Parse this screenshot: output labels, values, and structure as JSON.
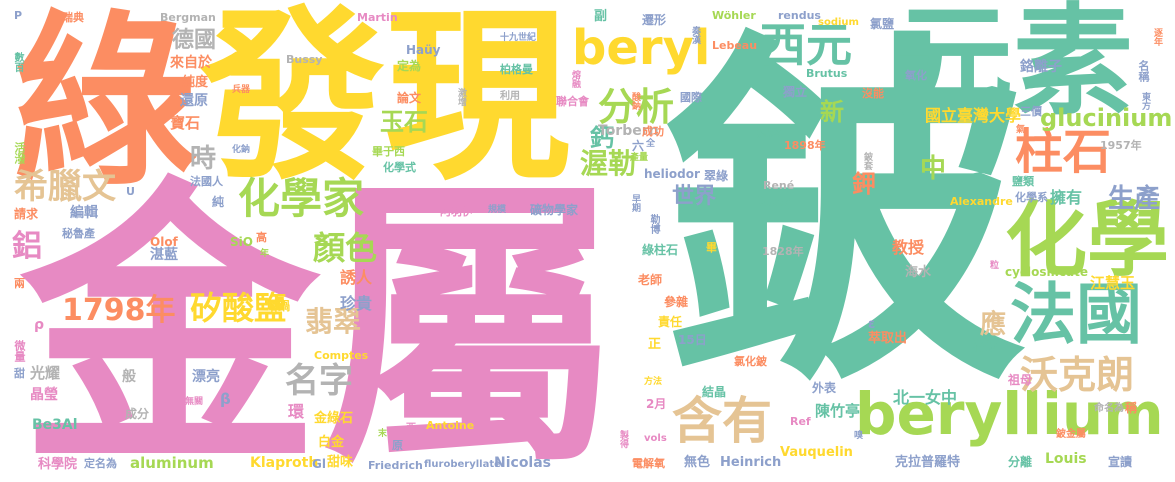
{
  "palette": {
    "green": "#66C2A5",
    "orange": "#FC8D62",
    "blue": "#8DA0CB",
    "pink": "#E78AC3",
    "lime": "#A6D854",
    "yellow": "#FFD92F",
    "tan": "#E5C494",
    "gray": "#B3B3B3"
  },
  "words": [
    {
      "text": "鈹",
      "color": "#66C2A5"
    },
    {
      "text": "金屬",
      "color": "#E78AC3"
    },
    {
      "text": "綠",
      "color": "#FC8D62"
    },
    {
      "text": "發現",
      "color": "#FFD92F"
    },
    {
      "text": "元素",
      "color": "#66C2A5"
    },
    {
      "text": "beryllium",
      "color": "#A6D854"
    },
    {
      "text": "化學",
      "color": "#A6D854"
    },
    {
      "text": "法國",
      "color": "#66C2A5"
    },
    {
      "text": "beryl",
      "color": "#FFD92F"
    },
    {
      "text": "西元",
      "color": "#66C2A5"
    },
    {
      "text": "柱石",
      "color": "#FC8D62"
    },
    {
      "text": "化學家",
      "color": "#A6D854"
    },
    {
      "text": "含有",
      "color": "#E5C494"
    },
    {
      "text": "沃克朗",
      "color": "#E5C494"
    },
    {
      "text": "分析",
      "color": "#A6D854"
    },
    {
      "text": "希臘文",
      "color": "#E5C494"
    },
    {
      "text": "1798年",
      "color": "#FC8D62"
    },
    {
      "text": "矽酸鹽",
      "color": "#FFD92F"
    },
    {
      "text": "名字",
      "color": "#B3B3B3"
    },
    {
      "text": "翡翠",
      "color": "#E5C494"
    },
    {
      "text": "顏色",
      "color": "#A6D854"
    },
    {
      "text": "glucinium",
      "color": "#A6D854"
    },
    {
      "text": "鋁",
      "color": "#E78AC3"
    },
    {
      "text": "生產",
      "color": "#8DA0CB"
    },
    {
      "text": "渥勒",
      "color": "#A6D854"
    },
    {
      "text": "玉石",
      "color": "#A6D854"
    },
    {
      "text": "世界",
      "color": "#8DA0CB"
    },
    {
      "text": "中",
      "color": "#A6D854"
    },
    {
      "text": "鉀",
      "color": "#FC8D62"
    },
    {
      "text": "時",
      "color": "#B3B3B3"
    },
    {
      "text": "德國",
      "color": "#B3B3B3"
    },
    {
      "text": "應",
      "color": "#E5C494"
    },
    {
      "text": "新",
      "color": "#A6D854"
    },
    {
      "text": "鈣",
      "color": "#66C2A5"
    },
    {
      "text": "Torbern",
      "color": "#B3B3B3"
    },
    {
      "text": "國立臺灣大學",
      "color": "#FFD92F"
    },
    {
      "text": "鉻離子",
      "color": "#8DA0CB"
    },
    {
      "text": "教授",
      "color": "#FC8D62"
    },
    {
      "text": "擁有",
      "color": "#66C2A5"
    },
    {
      "text": "珍貴",
      "color": "#8DA0CB"
    },
    {
      "text": "誘人",
      "color": "#FC8D62"
    },
    {
      "text": "北一女中",
      "color": "#66C2A5"
    },
    {
      "text": "江慧玉",
      "color": "#FFD92F"
    },
    {
      "text": "陳竹亭",
      "color": "#66C2A5"
    },
    {
      "text": "寶石",
      "color": "#FC8D62"
    },
    {
      "text": "光耀",
      "color": "#B3B3B3"
    },
    {
      "text": "晶瑩",
      "color": "#E78AC3"
    },
    {
      "text": "還原",
      "color": "#8DA0CB"
    },
    {
      "text": "純度",
      "color": "#FC8D62"
    },
    {
      "text": "來自於",
      "color": "#FC8D62"
    },
    {
      "text": "編輯",
      "color": "#8DA0CB"
    },
    {
      "text": "請求",
      "color": "#FC8D62"
    },
    {
      "text": "湛藍",
      "color": "#8DA0CB"
    },
    {
      "text": "秘魯產",
      "color": "#8DA0CB"
    },
    {
      "text": "Be3Al",
      "color": "#66C2A5"
    },
    {
      "text": "科學院",
      "color": "#E78AC3"
    },
    {
      "text": "定名為",
      "color": "#8DA0CB"
    },
    {
      "text": "aluminum",
      "color": "#A6D854"
    },
    {
      "text": "Klaproth",
      "color": "#FFD92F"
    },
    {
      "text": "Gl",
      "color": "#8DA0CB"
    },
    {
      "text": "甜味",
      "color": "#FFD92F"
    },
    {
      "text": "Friedrich",
      "color": "#8DA0CB"
    },
    {
      "text": "fluroberyllate",
      "color": "#8DA0CB"
    },
    {
      "text": "Nicolas",
      "color": "#8DA0CB"
    },
    {
      "text": "電解氧",
      "color": "#FC8D62"
    },
    {
      "text": "無色",
      "color": "#8DA0CB"
    },
    {
      "text": "Heinrich",
      "color": "#8DA0CB"
    },
    {
      "text": "Vauquelin",
      "color": "#FFD92F"
    },
    {
      "text": "克拉普羅特",
      "color": "#8DA0CB"
    },
    {
      "text": "分離",
      "color": "#66C2A5"
    },
    {
      "text": "Louis",
      "color": "#A6D854"
    },
    {
      "text": "宣讀",
      "color": "#8DA0CB"
    },
    {
      "text": "白金",
      "color": "#FFD92F"
    },
    {
      "text": "金綠石",
      "color": "#FFD92F"
    },
    {
      "text": "環",
      "color": "#E78AC3"
    },
    {
      "text": "漂亮",
      "color": "#8DA0CB"
    },
    {
      "text": "般",
      "color": "#B3B3B3"
    },
    {
      "text": "成分",
      "color": "#B3B3B3"
    },
    {
      "text": "坩鍋",
      "color": "#FFD92F"
    },
    {
      "text": "SiO",
      "color": "#A6D854"
    },
    {
      "text": "高",
      "color": "#FC8D62"
    },
    {
      "text": "Olof",
      "color": "#FC8D62"
    },
    {
      "text": "純",
      "color": "#8DA0CB"
    },
    {
      "text": "法國人",
      "color": "#8DA0CB"
    },
    {
      "text": "化學式",
      "color": "#66C2A5"
    },
    {
      "text": "畢于西",
      "color": "#A6D854"
    },
    {
      "text": "論文",
      "color": "#FC8D62"
    },
    {
      "text": "定為",
      "color": "#A6D854"
    },
    {
      "text": "Haüy",
      "color": "#8DA0CB"
    },
    {
      "text": "Bussy",
      "color": "#B3B3B3"
    },
    {
      "text": "Martin",
      "color": "#E78AC3"
    },
    {
      "text": "Bergman",
      "color": "#B3B3B3"
    },
    {
      "text": "瑞典",
      "color": "#FC8D62"
    },
    {
      "text": "十九世紀",
      "color": "#8DA0CB"
    },
    {
      "text": "柏格曼",
      "color": "#66C2A5"
    },
    {
      "text": "利用",
      "color": "#B3B3B3"
    },
    {
      "text": "阿羽伊",
      "color": "#E78AC3"
    },
    {
      "text": "礦物學家",
      "color": "#8DA0CB"
    },
    {
      "text": "規模",
      "color": "#8DA0CB"
    },
    {
      "text": "heliodor",
      "color": "#8DA0CB"
    },
    {
      "text": "René",
      "color": "#B3B3B3"
    },
    {
      "text": "λλος",
      "color": "#66C2A5"
    },
    {
      "text": "Alexandre",
      "color": "#FFD92F"
    },
    {
      "text": "化學系",
      "color": "#8DA0CB"
    },
    {
      "text": "鹽類",
      "color": "#66C2A5"
    },
    {
      "text": "cyclosilicate",
      "color": "#A6D854"
    },
    {
      "text": "海水",
      "color": "#B3B3B3"
    },
    {
      "text": "萃取出",
      "color": "#FC8D62"
    },
    {
      "text": "符號",
      "color": "#66C2A5"
    },
    {
      "text": "祖母",
      "color": "#E78AC3"
    },
    {
      "text": "外表",
      "color": "#8DA0CB"
    },
    {
      "text": "參雜",
      "color": "#FC8D62"
    },
    {
      "text": "責任",
      "color": "#FFD92F"
    },
    {
      "text": "老師",
      "color": "#FC8D62"
    },
    {
      "text": "綠柱石",
      "color": "#66C2A5"
    },
    {
      "text": "畢",
      "color": "#FFD92F"
    },
    {
      "text": "1828年",
      "color": "#B3B3B3"
    },
    {
      "text": "1898年",
      "color": "#FC8D62"
    },
    {
      "text": "源於",
      "color": "#66C2A5"
    },
    {
      "text": "成功",
      "color": "#FC8D62"
    },
    {
      "text": "副",
      "color": "#66C2A5"
    },
    {
      "text": "遷形",
      "color": "#8DA0CB"
    },
    {
      "text": "Wöhler",
      "color": "#A6D854"
    },
    {
      "text": "rendus",
      "color": "#8DA0CB"
    },
    {
      "text": "氯鹽",
      "color": "#8DA0CB"
    },
    {
      "text": "Lebeau",
      "color": "#FC8D62"
    },
    {
      "text": "Brutus",
      "color": "#66C2A5"
    },
    {
      "text": "獨立",
      "color": "#8DA0CB"
    },
    {
      "text": "沒能",
      "color": "#FC8D62"
    },
    {
      "text": "氧化",
      "color": "#8DA0CB"
    },
    {
      "text": "三價",
      "color": "#8DA0CB"
    },
    {
      "text": "國際",
      "color": "#8DA0CB"
    },
    {
      "text": "聯合會",
      "color": "#E78AC3"
    },
    {
      "text": "六",
      "color": "#8DA0CB"
    },
    {
      "text": "正",
      "color": "#FFD92F"
    },
    {
      "text": "15日",
      "color": "#8DA0CB"
    },
    {
      "text": "2月",
      "color": "#E78AC3"
    },
    {
      "text": "Ref",
      "color": "#E78AC3"
    },
    {
      "text": "氯化鈹",
      "color": "#FC8D62"
    },
    {
      "text": "結晶",
      "color": "#66C2A5"
    },
    {
      "text": "翠綠",
      "color": "#8DA0CB"
    },
    {
      "text": "Comptes",
      "color": "#FFD92F"
    },
    {
      "text": "Antoine",
      "color": "#FFD92F"
    },
    {
      "text": "原",
      "color": "#8DA0CB"
    },
    {
      "text": "1957年",
      "color": "#B3B3B3"
    },
    {
      "text": "ε",
      "color": "#8DA0CB"
    },
    {
      "text": "β",
      "color": "#8DA0CB"
    },
    {
      "text": "ρ",
      "color": "#E78AC3"
    },
    {
      "text": "U",
      "color": "#8DA0CB"
    },
    {
      "text": "P",
      "color": "#8DA0CB"
    },
    {
      "text": "活潑",
      "color": "#A6D854"
    },
    {
      "text": "微量",
      "color": "#E78AC3"
    },
    {
      "text": "甜",
      "color": "#8DA0CB"
    },
    {
      "text": "兩",
      "color": "#FC8D62"
    },
    {
      "text": "數百",
      "color": "#66C2A5"
    },
    {
      "text": "名稱",
      "color": "#8DA0CB"
    },
    {
      "text": "東方",
      "color": "#8DA0CB"
    },
    {
      "text": "逐年",
      "color": "#FC8D62"
    },
    {
      "text": "稱",
      "color": "#FC8D62"
    },
    {
      "text": "命名為",
      "color": "#B3B3B3"
    },
    {
      "text": "鈹金屬",
      "color": "#FC8D62"
    },
    {
      "text": "vols",
      "color": "#E78AC3"
    },
    {
      "text": "sodium",
      "color": "#FFD92F"
    },
    {
      "text": "勒博",
      "color": "#8DA0CB"
    },
    {
      "text": "早期",
      "color": "#8DA0CB"
    },
    {
      "text": "全",
      "color": "#8DA0CB"
    },
    {
      "text": "酸鈉",
      "color": "#FC8D62"
    },
    {
      "text": "激增",
      "color": "#B3B3B3"
    },
    {
      "text": "熔融",
      "color": "#E78AC3"
    },
    {
      "text": "兵器",
      "color": "#FC8D62"
    },
    {
      "text": "化鈉",
      "color": "#8DA0CB"
    },
    {
      "text": "西",
      "color": "#E78AC3"
    },
    {
      "text": "年",
      "color": "#A6D854"
    },
    {
      "text": "末",
      "color": "#A6D854"
    },
    {
      "text": "氣",
      "color": "#FC8D62"
    },
    {
      "text": "無關",
      "color": "#E78AC3"
    },
    {
      "text": "方法",
      "color": "#FFD92F"
    },
    {
      "text": "奏漢",
      "color": "#8DA0CB"
    },
    {
      "text": "產量",
      "color": "#A6D854"
    },
    {
      "text": "製得",
      "color": "#E78AC3"
    },
    {
      "text": "嗅",
      "color": "#8DA0CB"
    },
    {
      "text": "鈹套",
      "color": "#B3B3B3"
    },
    {
      "text": "粒",
      "color": "#E78AC3"
    }
  ]
}
